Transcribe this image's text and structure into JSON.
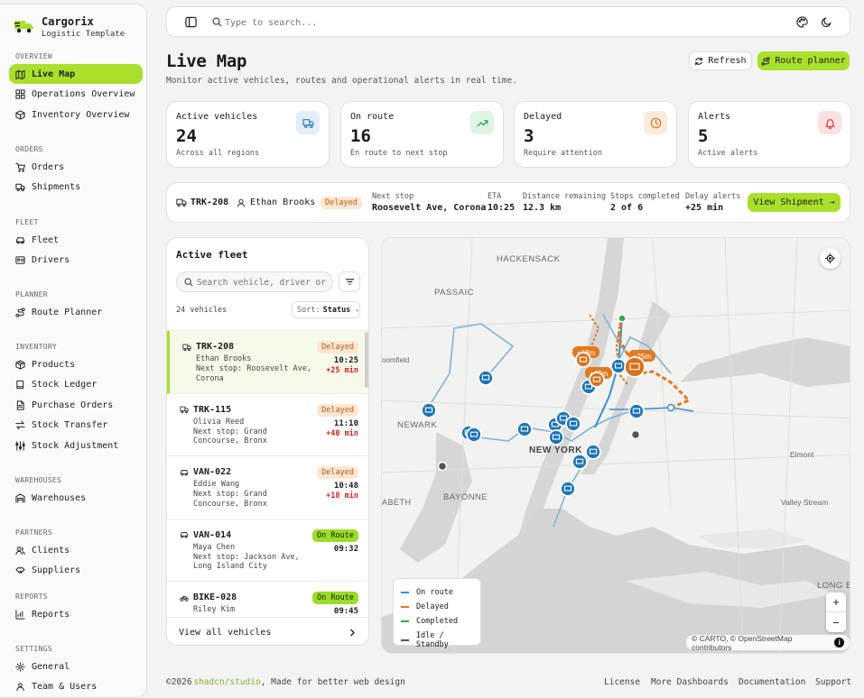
{
  "brand": {
    "name": "Cargorix",
    "subtitle": "Logistic Template"
  },
  "sidebar": {
    "sections": [
      {
        "title": "OVERVIEW",
        "items": [
          {
            "label": "Live Map",
            "icon": "map-icon",
            "active": true
          },
          {
            "label": "Operations Overview",
            "icon": "grid-icon"
          },
          {
            "label": "Inventory Overview",
            "icon": "box-icon"
          }
        ]
      },
      {
        "title": "ORDERS",
        "items": [
          {
            "label": "Orders",
            "icon": "cart-icon"
          },
          {
            "label": "Shipments",
            "icon": "truck-icon"
          }
        ]
      },
      {
        "title": "FLEET",
        "items": [
          {
            "label": "Fleet",
            "icon": "car-icon"
          },
          {
            "label": "Drivers",
            "icon": "id-card-icon"
          }
        ]
      },
      {
        "title": "PLANNER",
        "items": [
          {
            "label": "Route Planner",
            "icon": "route-icon"
          }
        ]
      },
      {
        "title": "INVENTORY",
        "items": [
          {
            "label": "Products",
            "icon": "package-icon"
          },
          {
            "label": "Stock Ledger",
            "icon": "book-icon"
          },
          {
            "label": "Purchase Orders",
            "icon": "file-icon"
          },
          {
            "label": "Stock Transfer",
            "icon": "transfer-icon"
          },
          {
            "label": "Stock Adjustment",
            "icon": "sliders-icon"
          }
        ]
      },
      {
        "title": "WAREHOUSES",
        "items": [
          {
            "label": "Warehouses",
            "icon": "warehouse-icon"
          }
        ]
      },
      {
        "title": "PARTNERS",
        "items": [
          {
            "label": "Clients",
            "icon": "users-icon"
          },
          {
            "label": "Suppliers",
            "icon": "handshake-icon"
          }
        ]
      },
      {
        "title": "REPORTS",
        "items": [
          {
            "label": "Reports",
            "icon": "chart-icon"
          }
        ]
      },
      {
        "title": "SETTINGS",
        "items": [
          {
            "label": "General",
            "icon": "gear-icon"
          },
          {
            "label": "Team & Users",
            "icon": "team-icon"
          }
        ]
      }
    ]
  },
  "topbar": {
    "search_placeholder": "Type to search..."
  },
  "header": {
    "title": "Live Map",
    "subtitle": "Monitor active vehicles, routes and operational alerts in real time.",
    "refresh_label": "Refresh",
    "planner_label": "Route planner"
  },
  "stats": [
    {
      "label": "Active vehicles",
      "value": "24",
      "sub": "Across all regions",
      "icon": "truck-icon",
      "color": "#2f7fc1",
      "bg": "#e3eef8"
    },
    {
      "label": "On route",
      "value": "16",
      "sub": "En route to next stop",
      "icon": "trend-up-icon",
      "color": "#2e9d55",
      "bg": "#e1f3e6"
    },
    {
      "label": "Delayed",
      "value": "3",
      "sub": "Require attention",
      "icon": "clock-icon",
      "color": "#d9751a",
      "bg": "#fcebdb"
    },
    {
      "label": "Alerts",
      "value": "5",
      "sub": "Active alerts",
      "icon": "bell-icon",
      "color": "#d63b3b",
      "bg": "#fbe2e2"
    }
  ],
  "shipment": {
    "vehicle": "TRK-208",
    "driver": "Ethan Brooks",
    "status": "Delayed",
    "next_stop_label": "Next stop",
    "next_stop": "Roosevelt Ave, Corona",
    "eta_label": "ETA",
    "eta": "10:25",
    "distance_label": "Distance remaining",
    "distance": "12.3 km",
    "stops_label": "Stops completed",
    "stops": "2 of 6",
    "delay_label": "Delay alerts",
    "delay": "+25 min",
    "button": "View Shipment →"
  },
  "fleet": {
    "title": "Active fleet",
    "search_placeholder": "Search vehicle, driver or",
    "count": "24 vehicles",
    "sort_label": "Sort:",
    "sort_value": "Status",
    "view_all": "View all vehicles",
    "vehicles": [
      {
        "id": "TRK-208",
        "driver": "Ethan Brooks",
        "stop": "Next stop: Roosevelt Ave, Corona",
        "status": "Delayed",
        "time": "10:25",
        "delay": "+25 min",
        "kind": "truck"
      },
      {
        "id": "TRK-115",
        "driver": "Olivia Reed",
        "stop": "Next stop: Grand Concourse, Bronx",
        "status": "Delayed",
        "time": "11:10",
        "delay": "+40 min",
        "kind": "truck"
      },
      {
        "id": "VAN-022",
        "driver": "Eddie Wang",
        "stop": "Next stop: Grand Concourse, Bronx",
        "status": "Delayed",
        "time": "10:48",
        "delay": "+18 min",
        "kind": "car"
      },
      {
        "id": "VAN-014",
        "driver": "Maya Chen",
        "stop": "Next stop: Jackson Ave, Long Island City",
        "status": "On Route",
        "time": "09:32",
        "delay": "",
        "kind": "car"
      },
      {
        "id": "BIKE-028",
        "driver": "Riley Kim",
        "stop": "",
        "status": "On Route",
        "time": "09:45",
        "delay": "",
        "kind": "bike"
      }
    ]
  },
  "map": {
    "labels": [
      "HACKENSACK",
      "PASSAIC",
      "NEWARK",
      "NEW YORK",
      "BAYONNE",
      "Elmont",
      "Valley Stream",
      "LONG BE",
      "oomfield",
      "ABETH"
    ],
    "delay_tags": [
      "+18m",
      "+40m",
      "+25m"
    ],
    "legend": [
      {
        "label": "On route",
        "color": "#3a8fd0"
      },
      {
        "label": "Delayed",
        "color": "#e07a22"
      },
      {
        "label": "Completed",
        "color": "#36a852"
      },
      {
        "label": "Idle / Standby",
        "color": "#555555"
      }
    ],
    "attribution": "© CARTO, © OpenStreetMap contributors",
    "zoom_in": "+",
    "zoom_out": "−"
  },
  "footer": {
    "left_year": "©2026",
    "left_brand": "shadcn/studio",
    "left_rest": ", Made for better web design",
    "links": [
      "License",
      "More Dashboards",
      "Documentation",
      "Support"
    ]
  }
}
